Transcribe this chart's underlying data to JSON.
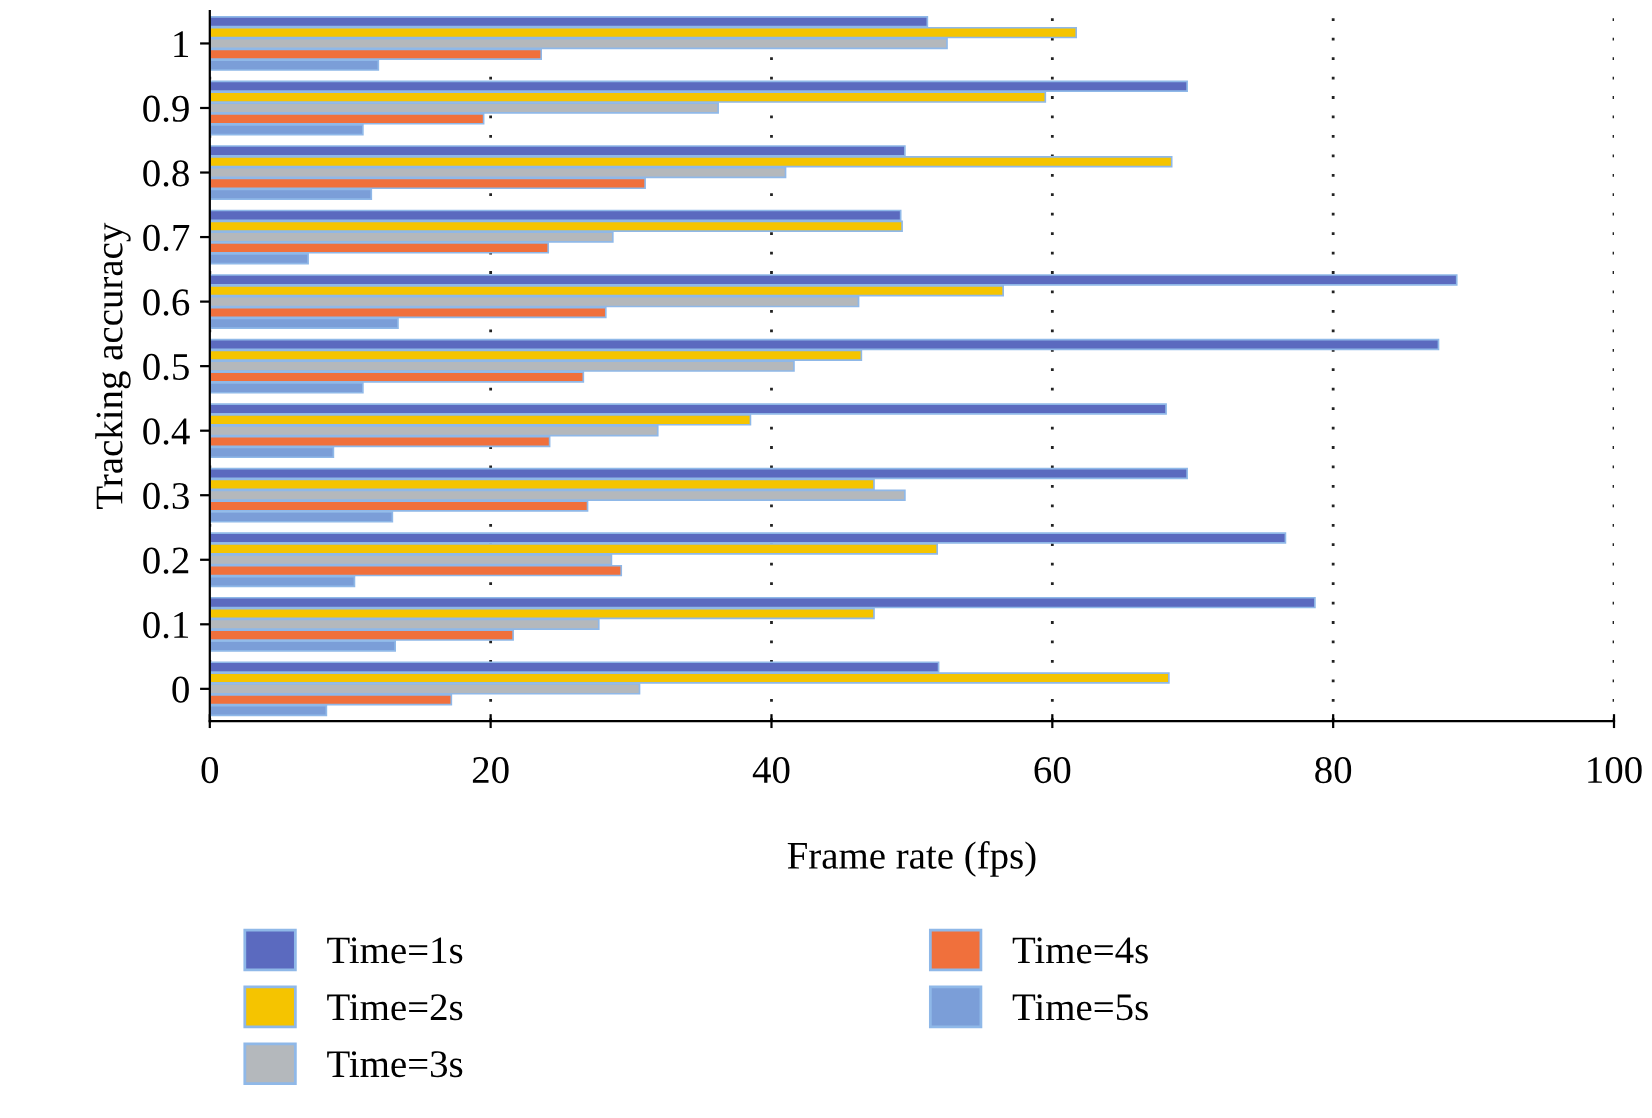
{
  "chart_data": {
    "type": "bar",
    "orientation": "horizontal",
    "xlabel": "Frame rate (fps)",
    "ylabel": "Tracking accuracy",
    "categories": [
      "1",
      "0.9",
      "0.8",
      "0.7",
      "0.6",
      "0.5",
      "0.4",
      "0.3",
      "0.2",
      "0.1",
      "0"
    ],
    "series": [
      {
        "name": "Time=1s",
        "color": "#5b6abf",
        "values": [
          51.1,
          69.6,
          49.5,
          49.2,
          88.8,
          87.5,
          68.1,
          69.6,
          76.6,
          78.7,
          51.9
        ]
      },
      {
        "name": "Time=2s",
        "color": "#f5c400",
        "values": [
          61.7,
          59.5,
          68.5,
          49.3,
          56.5,
          46.4,
          38.5,
          47.3,
          51.8,
          47.3,
          68.3
        ]
      },
      {
        "name": "Time=3s",
        "color": "#b4b8bc",
        "values": [
          52.5,
          36.2,
          41.0,
          28.7,
          46.2,
          41.6,
          31.9,
          49.5,
          28.6,
          27.7,
          30.6
        ]
      },
      {
        "name": "Time=4s",
        "color": "#f0703c",
        "values": [
          23.6,
          19.5,
          31.0,
          24.1,
          28.2,
          26.6,
          24.2,
          26.9,
          29.3,
          21.6,
          17.2
        ]
      },
      {
        "name": "Time=5s",
        "color": "#7b9ed8",
        "values": [
          12.0,
          10.9,
          11.5,
          7.0,
          13.4,
          10.9,
          8.8,
          13.0,
          10.3,
          13.2,
          8.3
        ]
      }
    ],
    "xlim": [
      0,
      100
    ],
    "xticks": [
      0,
      20,
      40,
      60,
      80,
      100
    ],
    "grid": "x",
    "legend": "bottom"
  }
}
